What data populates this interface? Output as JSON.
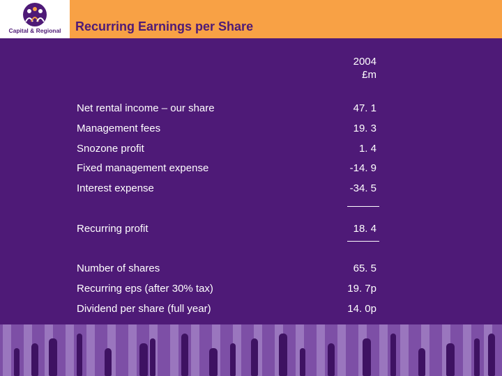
{
  "header": {
    "logo_text": "Capital & Regional",
    "title": "Recurring Earnings per Share"
  },
  "table": {
    "column_year": "2004",
    "column_unit": "£m",
    "rows": [
      {
        "label": "Net rental income – our share",
        "value": "47. 1"
      },
      {
        "label": "Management fees",
        "value": "19. 3"
      },
      {
        "label": "Snozone profit",
        "value": "1. 4"
      },
      {
        "label": "Fixed management expense",
        "value": "-14. 9"
      },
      {
        "label": "Interest expense",
        "value": "-34. 5"
      },
      {
        "label": "Recurring profit",
        "value": "18. 4"
      },
      {
        "label": "Number of shares",
        "value": "65. 5"
      },
      {
        "label": "Recurring eps (after 30% tax)",
        "value": "19. 7p"
      },
      {
        "label": "Dividend per share (full year)",
        "value": "14. 0p"
      }
    ]
  },
  "colors": {
    "background": "#4e1a77",
    "header": "#f8a145",
    "text": "#ffffff"
  }
}
